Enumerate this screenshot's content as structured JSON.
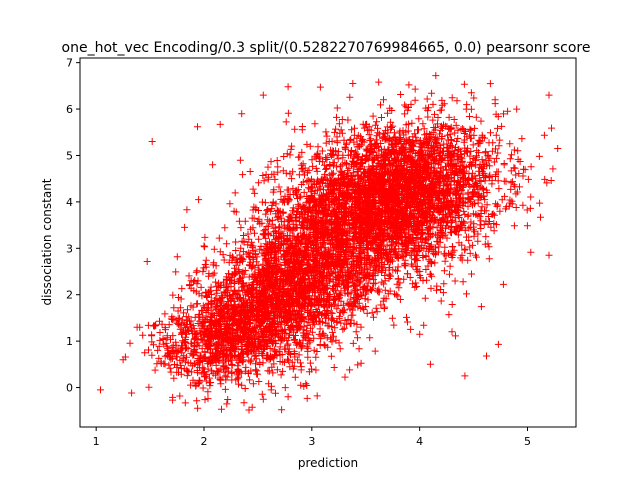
{
  "chart_data": {
    "type": "scatter",
    "title": "one_hot_vec Encoding/0.3 split/(0.5282270769984665, 0.0) pearsonr score",
    "xlabel": "prediction",
    "ylabel": "dissociation constant",
    "xlim": [
      0.85,
      5.45
    ],
    "ylim": [
      -0.85,
      7.1
    ],
    "xticks": [
      1,
      2,
      3,
      4,
      5
    ],
    "yticks": [
      0,
      1,
      2,
      3,
      4,
      5,
      6,
      7
    ],
    "grid": false,
    "marker": "+",
    "color": "#ff0000",
    "series": [
      {
        "points": [
          [
            1.04,
            -0.05
          ],
          [
            1.52,
            5.3
          ],
          [
            1.94,
            5.62
          ],
          [
            2.15,
            5.67
          ],
          [
            1.82,
            3.45
          ],
          [
            1.95,
            4.05
          ],
          [
            4.15,
            6.72
          ],
          [
            4.42,
            0.25
          ],
          [
            4.62,
            0.68
          ],
          [
            4.73,
            0.93
          ],
          [
            2.72,
            -0.48
          ],
          [
            2.55,
            -0.25
          ],
          [
            2.78,
            -0.2
          ],
          [
            3.05,
            -0.18
          ],
          [
            1.25,
            0.6
          ],
          [
            1.38,
            1.3
          ],
          [
            1.45,
            0.75
          ],
          [
            1.6,
            0.55
          ],
          [
            1.72,
            0.2
          ],
          [
            5.2,
            2.85
          ],
          [
            5.28,
            5.15
          ],
          [
            5.2,
            6.3
          ],
          [
            4.9,
            6.0
          ],
          [
            4.7,
            6.2
          ],
          [
            4.48,
            6.35
          ],
          [
            2.35,
            5.9
          ],
          [
            2.55,
            6.3
          ],
          [
            2.78,
            6.48
          ],
          [
            3.38,
            6.55
          ],
          [
            3.62,
            6.58
          ],
          [
            3.9,
            6.52
          ],
          [
            4.0,
            1.15
          ],
          [
            4.3,
            1.2
          ],
          [
            4.1,
            0.5
          ],
          [
            3.35,
            0.38
          ],
          [
            2.08,
            4.8
          ],
          [
            2.0,
            3.05
          ],
          [
            1.88,
            2.3
          ],
          [
            1.72,
            1.72
          ],
          [
            1.55,
            1.35
          ],
          [
            1.62,
            1.05
          ],
          [
            1.8,
            0.9
          ],
          [
            2.0,
            0.4
          ],
          [
            2.2,
            0.25
          ],
          [
            2.35,
            0.05
          ]
        ]
      }
    ],
    "clusters": [
      {
        "cx": 3.78,
        "cy": 4.1,
        "sx": 0.48,
        "sy": 0.78,
        "rho": 0.2,
        "n": 3400
      },
      {
        "cx": 2.7,
        "cy": 2.0,
        "sx": 0.38,
        "sy": 0.8,
        "rho": 0.35,
        "n": 2000
      },
      {
        "cx": 2.15,
        "cy": 1.0,
        "sx": 0.3,
        "sy": 0.45,
        "rho": 0.2,
        "n": 650
      },
      {
        "cx": 3.25,
        "cy": 3.1,
        "sx": 0.4,
        "sy": 0.95,
        "rho": 0.25,
        "n": 900
      }
    ]
  }
}
